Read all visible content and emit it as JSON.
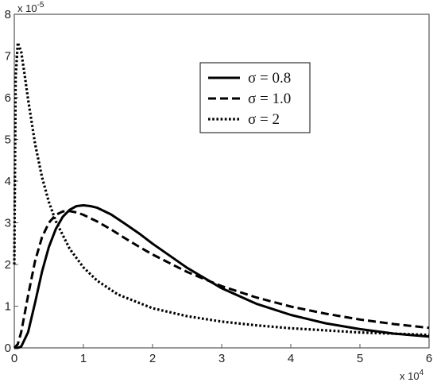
{
  "chart_data": {
    "type": "line",
    "title": "",
    "xlabel": "",
    "ylabel": "",
    "xlim": [
      0,
      6
    ],
    "ylim": [
      0,
      8
    ],
    "x_ticks": [
      "0",
      "1",
      "2",
      "3",
      "4",
      "5",
      "6"
    ],
    "y_ticks": [
      "0",
      "1",
      "2",
      "3",
      "4",
      "5",
      "6",
      "7",
      "8"
    ],
    "x_multiplier": {
      "base": "x 10",
      "exponent": "4"
    },
    "y_multiplier": {
      "base": "x 10",
      "exponent": "-5"
    },
    "grid": false,
    "legend_position": "top-right",
    "series": [
      {
        "name": "σ = 0.8",
        "style": "solid",
        "color": "#000000",
        "x": [
          0,
          0.05,
          0.1,
          0.2,
          0.3,
          0.4,
          0.5,
          0.6,
          0.7,
          0.8,
          0.9,
          1.0,
          1.1,
          1.2,
          1.4,
          1.6,
          1.8,
          2.0,
          2.5,
          3.0,
          3.5,
          4.0,
          4.5,
          5.0,
          5.5,
          6.0
        ],
        "y": [
          0,
          0.001,
          0.03,
          0.38,
          1.08,
          1.82,
          2.42,
          2.85,
          3.14,
          3.31,
          3.4,
          3.42,
          3.4,
          3.36,
          3.2,
          2.98,
          2.75,
          2.5,
          1.92,
          1.43,
          1.06,
          0.79,
          0.59,
          0.45,
          0.34,
          0.27
        ]
      },
      {
        "name": "σ = 1.0",
        "style": "dashed",
        "color": "#000000",
        "x": [
          0,
          0.05,
          0.1,
          0.2,
          0.3,
          0.4,
          0.5,
          0.6,
          0.7,
          0.8,
          0.9,
          1.0,
          1.2,
          1.4,
          1.6,
          1.8,
          2.0,
          2.5,
          3.0,
          3.5,
          4.0,
          4.5,
          5.0,
          5.5,
          6.0
        ],
        "y": [
          0,
          0.09,
          0.38,
          1.26,
          2.08,
          2.65,
          3.0,
          3.19,
          3.27,
          3.28,
          3.25,
          3.19,
          3.03,
          2.84,
          2.63,
          2.43,
          2.24,
          1.82,
          1.48,
          1.21,
          0.99,
          0.82,
          0.68,
          0.57,
          0.48
        ]
      },
      {
        "name": "σ = 2",
        "style": "dotted",
        "color": "#000000",
        "x": [
          0,
          0.02,
          0.05,
          0.1,
          0.15,
          0.2,
          0.3,
          0.4,
          0.5,
          0.6,
          0.8,
          1.0,
          1.2,
          1.5,
          2.0,
          2.5,
          3.0,
          3.5,
          4.0,
          4.5,
          5.0,
          5.5,
          6.0
        ],
        "y": [
          2.0,
          6.5,
          7.32,
          7.1,
          6.55,
          5.95,
          4.9,
          4.1,
          3.5,
          3.04,
          2.38,
          1.93,
          1.61,
          1.28,
          0.95,
          0.76,
          0.63,
          0.54,
          0.47,
          0.42,
          0.37,
          0.34,
          0.31
        ]
      }
    ]
  }
}
